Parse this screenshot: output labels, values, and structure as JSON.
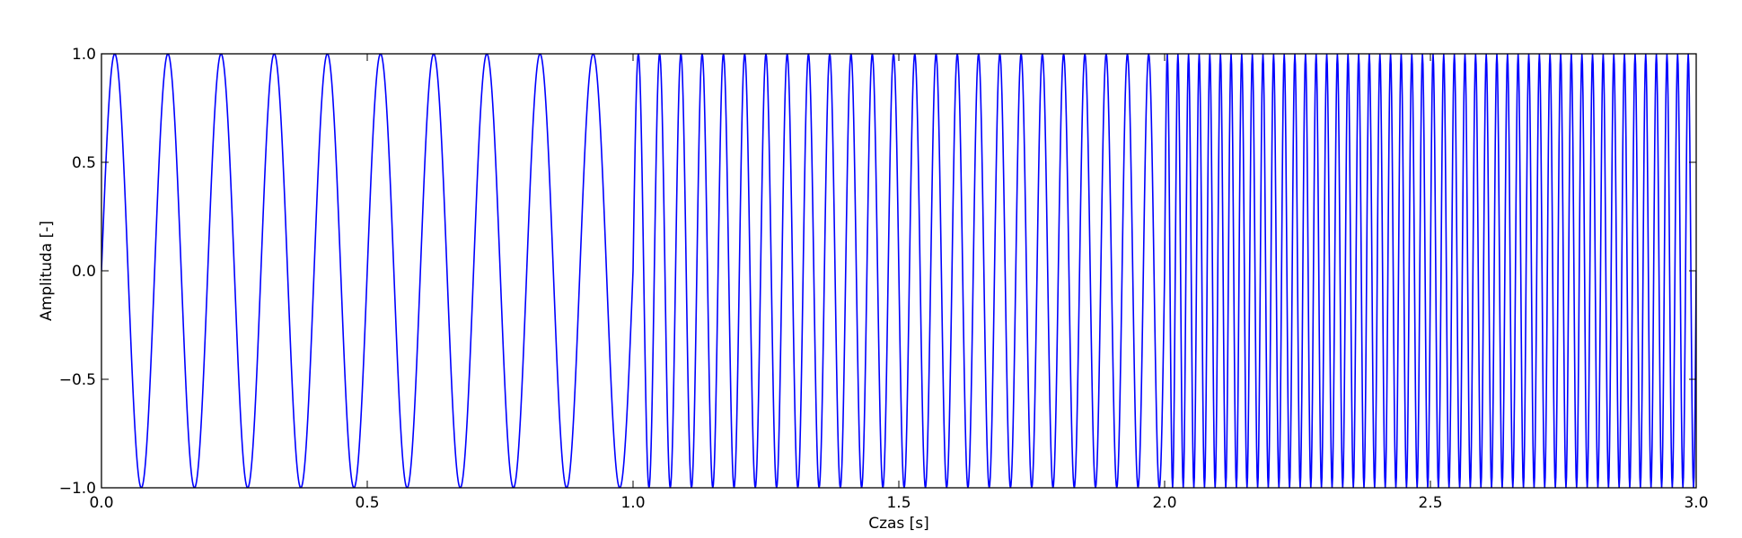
{
  "chart_data": {
    "type": "line",
    "title": "",
    "xlabel": "Czas [s]",
    "ylabel": "Amplituda [-]",
    "xlim": [
      0.0,
      3.0
    ],
    "ylim": [
      -1.0,
      1.0
    ],
    "xticks": [
      0.0,
      0.5,
      1.0,
      1.5,
      2.0,
      2.5,
      3.0
    ],
    "xtick_labels": [
      "0.0",
      "0.5",
      "1.0",
      "1.5",
      "2.0",
      "2.5",
      "3.0"
    ],
    "yticks": [
      -1.0,
      -0.5,
      0.0,
      0.5,
      1.0
    ],
    "ytick_labels": [
      "−1.0",
      "−0.5",
      "0.0",
      "0.5",
      "1.0"
    ],
    "grid": false,
    "legend": "none",
    "series": [
      {
        "color": "#0000ff",
        "function": "sine",
        "amplitude": 1.0,
        "segments": [
          {
            "t_start": 0.0,
            "t_end": 1.0,
            "frequency_hz": 10
          },
          {
            "t_start": 1.0,
            "t_end": 2.0,
            "frequency_hz": 25
          },
          {
            "t_start": 2.0,
            "t_end": 3.0,
            "frequency_hz": 50
          }
        ],
        "sample_rate_hz": 1000
      }
    ]
  }
}
